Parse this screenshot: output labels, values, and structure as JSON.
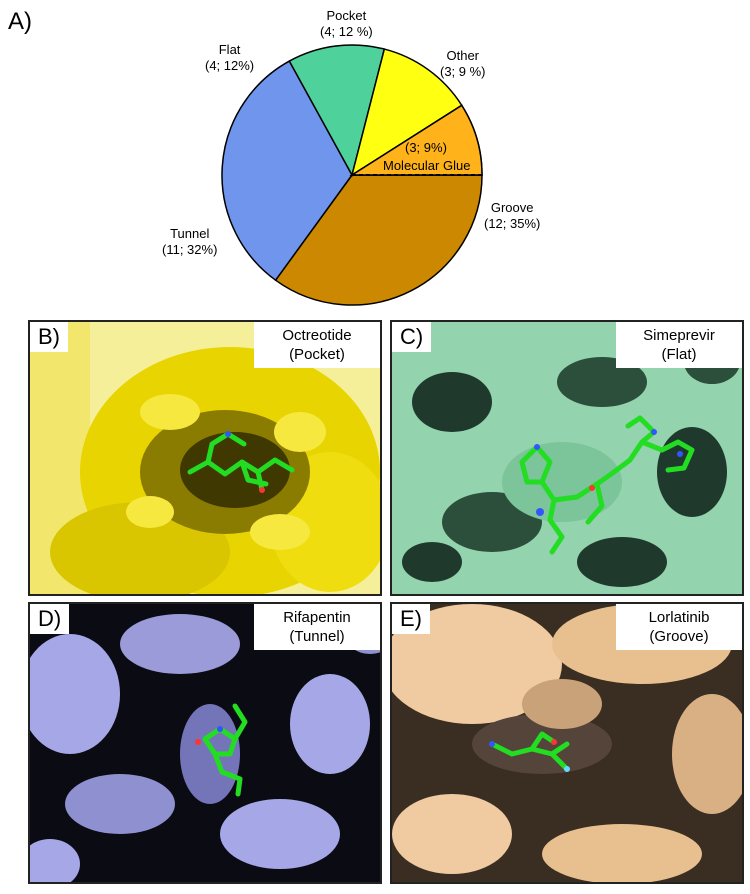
{
  "chart_data": {
    "type": "pie",
    "panel_label": "A)",
    "slices": [
      {
        "name": "Groove",
        "count_pct": "(12; 35%)",
        "value": 35,
        "color": "#cc8800"
      },
      {
        "name": "Tunnel",
        "count_pct": "(11; 32%)",
        "value": 32,
        "color": "#6f95ed"
      },
      {
        "name": "Flat",
        "count_pct": "(4; 12%)",
        "value": 12,
        "color": "#4fd19c"
      },
      {
        "name": "Pocket",
        "count_pct": "(4; 12 %)",
        "value": 12,
        "color": "#ffff12"
      },
      {
        "name": "Other",
        "count_pct": "(3; 9 %)",
        "value": 9,
        "color": "#ff8346"
      }
    ],
    "molecular_glue": {
      "label": "Molecular Glue",
      "count_pct": "(3; 9%)",
      "value": 9,
      "part_of": "Groove"
    }
  },
  "panels": [
    {
      "id": "B",
      "tag": "B)",
      "name": "Octreotide",
      "category": "(Pocket)",
      "surface": "#e8d400",
      "shade": "#6b5f00"
    },
    {
      "id": "C",
      "tag": "C)",
      "name": "Simeprevir",
      "category": "(Flat)",
      "surface": "#93d3ad",
      "shade": "#1f3a2c"
    },
    {
      "id": "D",
      "tag": "D)",
      "name": "Rifapentin",
      "category": "(Tunnel)",
      "surface": "#a6a7e6",
      "shade": "#0b0b14"
    },
    {
      "id": "E",
      "tag": "E)",
      "name": "Lorlatinib",
      "category": "(Groove)",
      "surface": "#f0caa0",
      "shade": "#2a2018"
    }
  ],
  "ligand_color": "#22dd22"
}
